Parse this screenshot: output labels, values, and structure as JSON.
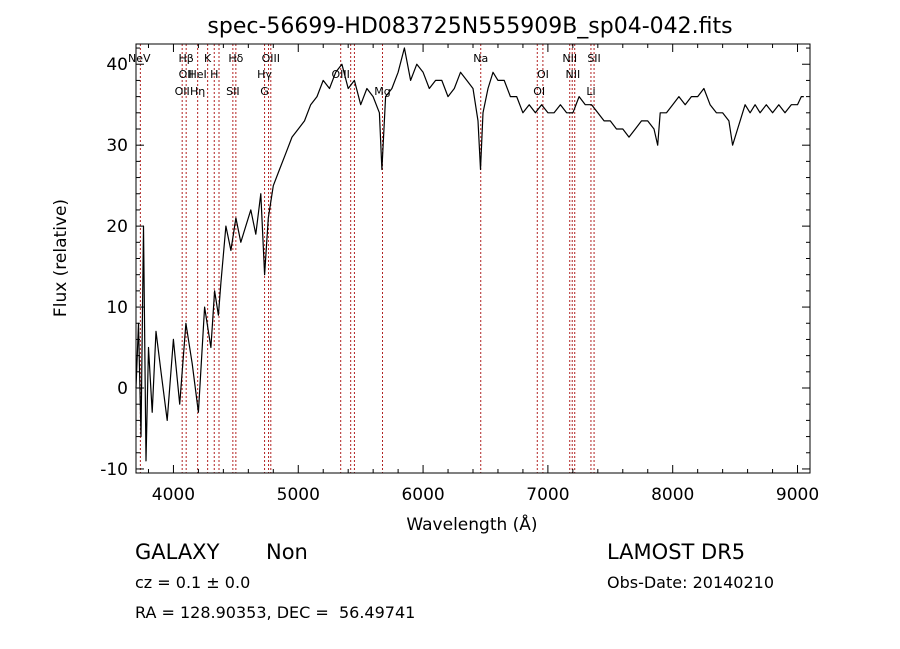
{
  "chart_data": {
    "type": "line",
    "title": "spec-56699-HD083725N555909B_sp04-042.fits",
    "xlabel": "Wavelength (Å)",
    "ylabel": "Flux (relative)",
    "xlim": [
      3700,
      9100
    ],
    "ylim": [
      -10.5,
      42.5
    ],
    "xticks": [
      4000,
      5000,
      6000,
      7000,
      8000,
      9000
    ],
    "yticks": [
      -10,
      0,
      10,
      20,
      30,
      40
    ],
    "grid": false,
    "line_color": "#000000",
    "marker_line_color": "#b22222",
    "series": [
      {
        "values_x": [
          3700,
          3720,
          3740,
          3760,
          3780,
          3800,
          3830,
          3860,
          3900,
          3950,
          4000,
          4050,
          4100,
          4150,
          4200,
          4250,
          4300,
          4330,
          4360,
          4380,
          4420,
          4460,
          4500,
          4540,
          4580,
          4620,
          4660,
          4700,
          4730,
          4760,
          4800,
          4850,
          4900,
          4950,
          5000,
          5050,
          5100,
          5150,
          5200,
          5250,
          5300,
          5350,
          5400,
          5450,
          5500,
          5550,
          5600,
          5650,
          5670,
          5700,
          5750,
          5800,
          5850,
          5900,
          5950,
          6000,
          6050,
          6100,
          6150,
          6200,
          6250,
          6300,
          6350,
          6400,
          6440,
          6460,
          6480,
          6520,
          6560,
          6600,
          6650,
          6700,
          6750,
          6800,
          6850,
          6900,
          6950,
          7000,
          7050,
          7100,
          7150,
          7200,
          7250,
          7300,
          7350,
          7400,
          7450,
          7500,
          7550,
          7600,
          7650,
          7700,
          7750,
          7800,
          7850,
          7880,
          7900,
          7950,
          8000,
          8050,
          8100,
          8150,
          8200,
          8250,
          8300,
          8350,
          8400,
          8450,
          8480,
          8500,
          8540,
          8580,
          8620,
          8660,
          8700,
          8750,
          8800,
          8850,
          8900,
          8950,
          9000,
          9030,
          9050
        ],
        "values_y": [
          0,
          8,
          -6,
          20,
          -9,
          5,
          -3,
          7,
          2,
          -4,
          6,
          -2,
          8,
          3,
          -3,
          10,
          5,
          12,
          9,
          13,
          20,
          17,
          21,
          18,
          20,
          22,
          19,
          24,
          14,
          21,
          25,
          27,
          29,
          31,
          32,
          33,
          35,
          36,
          38,
          37,
          39,
          40,
          37,
          38,
          35,
          37,
          36,
          34,
          27,
          36,
          37,
          39,
          42,
          38,
          40,
          39,
          37,
          38,
          38,
          36,
          37,
          39,
          38,
          37,
          33,
          27,
          34,
          37,
          39,
          38,
          38,
          36,
          36,
          34,
          35,
          34,
          35,
          34,
          34,
          35,
          34,
          34,
          36,
          35,
          35,
          34,
          33,
          33,
          32,
          32,
          31,
          32,
          33,
          33,
          32,
          30,
          34,
          34,
          35,
          36,
          35,
          36,
          36,
          37,
          35,
          34,
          34,
          33,
          30,
          31,
          33,
          35,
          34,
          35,
          34,
          35,
          34,
          35,
          34,
          35,
          35,
          36,
          36
        ]
      }
    ],
    "annotations": [
      {
        "label": "NeV",
        "x": 3726
      },
      {
        "label": "OII",
        "x": 4102
      },
      {
        "label": "OII",
        "x": 4070
      },
      {
        "label": "Hβ",
        "x": 4102
      },
      {
        "label": "HeI",
        "x": 4194
      },
      {
        "label": "Hη",
        "x": 4194
      },
      {
        "label": "K",
        "x": 4274
      },
      {
        "label": "H",
        "x": 4327
      },
      {
        "label": "SII",
        "x": 4476
      },
      {
        "label": "Hδ",
        "x": 4500
      },
      {
        "label": "Hγ",
        "x": 4730
      },
      {
        "label": "G",
        "x": 4730
      },
      {
        "label": "OIII",
        "x": 4780
      },
      {
        "label": "OIII",
        "x": 5340
      },
      {
        "label": "Mg",
        "x": 5675
      },
      {
        "label": "Na",
        "x": 6462
      },
      {
        "label": "OI",
        "x": 6960
      },
      {
        "label": "OI",
        "x": 6930
      },
      {
        "label": "NII",
        "x": 7175
      },
      {
        "label": "NII",
        "x": 7200
      },
      {
        "label": "Li",
        "x": 7345
      },
      {
        "label": "SII",
        "x": 7370
      }
    ]
  },
  "markers": [
    3735,
    4070,
    4102,
    4194,
    4274,
    4327,
    4365,
    4476,
    4500,
    4730,
    4762,
    4780,
    5340,
    5420,
    5450,
    5675,
    6462,
    6915,
    6960,
    7175,
    7195,
    7215,
    7345,
    7370
  ],
  "info": {
    "object_class": "GALAXY",
    "subclass": "Non",
    "cz": "cz = 0.1 ± 0.0",
    "radec": "RA = 128.90353, DEC =  56.49741",
    "survey": "LAMOST DR5",
    "obs_date": "Obs-Date: 20140210"
  }
}
